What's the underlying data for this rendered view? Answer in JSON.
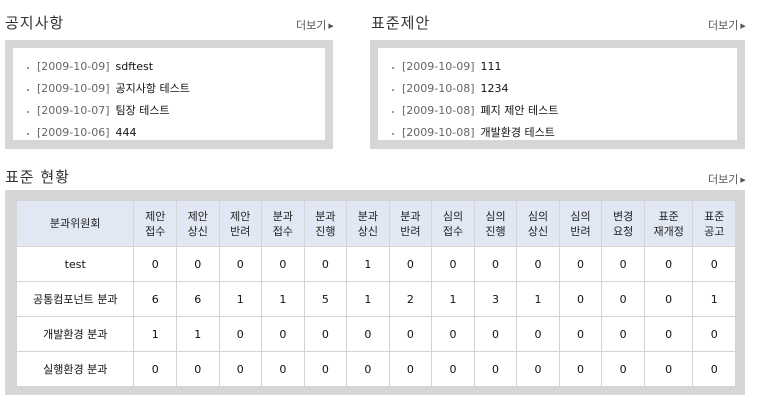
{
  "notice": {
    "title": "공지사항",
    "more": "더보기",
    "items": [
      {
        "date": "[2009-10-09]",
        "title": "sdftest"
      },
      {
        "date": "[2009-10-09]",
        "title": "공지사항 테스트"
      },
      {
        "date": "[2009-10-07]",
        "title": "팀장 테스트"
      },
      {
        "date": "[2009-10-06]",
        "title": "444"
      }
    ]
  },
  "proposal": {
    "title": "표준제안",
    "more": "더보기",
    "items": [
      {
        "date": "[2009-10-09]",
        "title": "111"
      },
      {
        "date": "[2009-10-08]",
        "title": "1234"
      },
      {
        "date": "[2009-10-08]",
        "title": "폐지 제안 테스트"
      },
      {
        "date": "[2009-10-08]",
        "title": "개발환경 테스트"
      }
    ]
  },
  "status": {
    "title": "표준 현황",
    "more": "더보기",
    "headers": [
      [
        "분과위원회"
      ],
      [
        "제안",
        "접수"
      ],
      [
        "제안",
        "상신"
      ],
      [
        "제안",
        "반려"
      ],
      [
        "분과",
        "접수"
      ],
      [
        "분과",
        "진행"
      ],
      [
        "분과",
        "상신"
      ],
      [
        "분과",
        "반려"
      ],
      [
        "심의",
        "접수"
      ],
      [
        "심의",
        "진행"
      ],
      [
        "심의",
        "상신"
      ],
      [
        "심의",
        "반려"
      ],
      [
        "변경",
        "요청"
      ],
      [
        "표준",
        "재개정"
      ],
      [
        "표준",
        "공고"
      ]
    ],
    "rows": [
      {
        "name": "test",
        "values": [
          "0",
          "0",
          "0",
          "0",
          "0",
          "1",
          "0",
          "0",
          "0",
          "0",
          "0",
          "0",
          "0",
          "0"
        ]
      },
      {
        "name": "공통컴포넌트 분과",
        "values": [
          "6",
          "6",
          "1",
          "1",
          "5",
          "1",
          "2",
          "1",
          "3",
          "1",
          "0",
          "0",
          "0",
          "1"
        ]
      },
      {
        "name": "개발환경 분과",
        "values": [
          "1",
          "1",
          "0",
          "0",
          "0",
          "0",
          "0",
          "0",
          "0",
          "0",
          "0",
          "0",
          "0",
          "0"
        ]
      },
      {
        "name": "실행환경 분과",
        "values": [
          "0",
          "0",
          "0",
          "0",
          "0",
          "0",
          "0",
          "0",
          "0",
          "0",
          "0",
          "0",
          "0",
          "0"
        ]
      }
    ]
  }
}
